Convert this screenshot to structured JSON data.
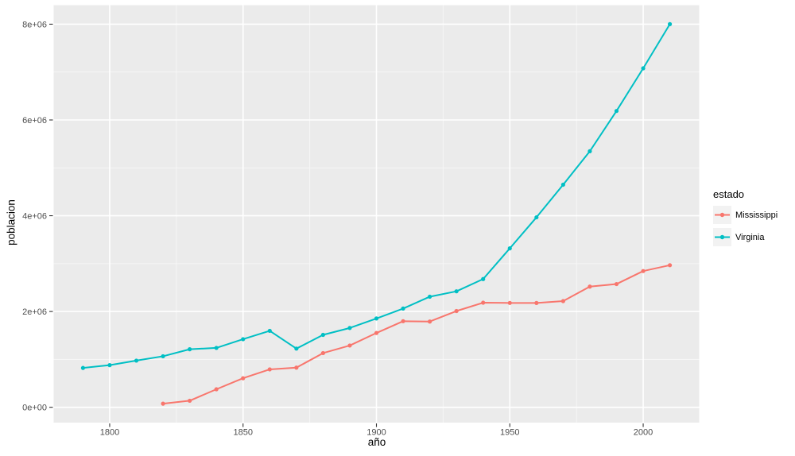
{
  "chart_data": {
    "type": "line",
    "title": "",
    "xlabel": "año",
    "ylabel": "poblacion",
    "legend": {
      "title": "estado",
      "position": "right"
    },
    "xlim": [
      1779,
      2021
    ],
    "ylim": [
      -320831,
      8397303
    ],
    "x_ticks": {
      "labels": [
        "1800",
        "1850",
        "1900",
        "1950",
        "2000"
      ],
      "values": [
        1800,
        1850,
        1900,
        1950,
        2000
      ],
      "minor": [
        1825,
        1875,
        1925,
        1975
      ]
    },
    "y_ticks": {
      "labels": [
        "0e+00",
        "2e+06",
        "4e+06",
        "6e+06",
        "8e+06"
      ],
      "values": [
        0,
        2000000,
        4000000,
        6000000,
        8000000
      ],
      "minor": [
        1000000,
        3000000,
        5000000,
        7000000
      ]
    },
    "grid": {
      "major": true,
      "minor": true
    },
    "colors": {
      "panel_bg": "#EBEBEB",
      "grid_major": "#FFFFFF",
      "grid_minor": "#F7F7F7",
      "tick_label": "#4D4D4D",
      "tick_mark": "#333333",
      "legend_key_bg": "#F2F2F2"
    },
    "series": [
      {
        "name": "Mississippi",
        "color": "#F8766D",
        "x": [
          1820,
          1830,
          1840,
          1850,
          1860,
          1870,
          1880,
          1890,
          1900,
          1910,
          1920,
          1930,
          1940,
          1950,
          1960,
          1970,
          1980,
          1990,
          2000,
          2010
        ],
        "y": [
          75448,
          136621,
          375651,
          606526,
          791305,
          827922,
          1131597,
          1289600,
          1551270,
          1797114,
          1790618,
          2009821,
          2183796,
          2178914,
          2178141,
          2216912,
          2520638,
          2573216,
          2844658,
          2967297
        ]
      },
      {
        "name": "Virginia",
        "color": "#00BFC4",
        "x": [
          1790,
          1800,
          1810,
          1820,
          1830,
          1840,
          1850,
          1860,
          1870,
          1880,
          1890,
          1900,
          1910,
          1920,
          1930,
          1940,
          1950,
          1960,
          1970,
          1980,
          1990,
          2000,
          2010
        ],
        "y": [
          821287,
          880200,
          974600,
          1065366,
          1211405,
          1239797,
          1421661,
          1596318,
          1225163,
          1512565,
          1655980,
          1854184,
          2061612,
          2309187,
          2421851,
          2677773,
          3318680,
          3966949,
          4648494,
          5346818,
          6187358,
          7078515,
          8001024
        ]
      }
    ]
  }
}
